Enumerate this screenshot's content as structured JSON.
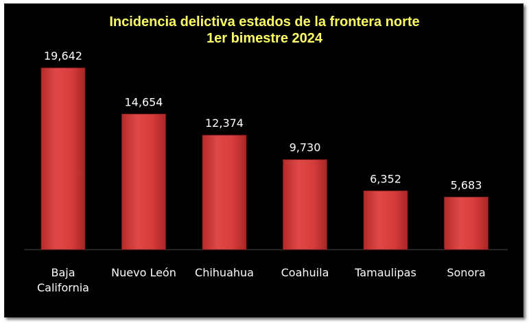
{
  "chart_data": {
    "type": "bar",
    "title": "Incidencia delictiva estados de la frontera norte",
    "subtitle": "1er bimestre 2024",
    "categories": [
      "Baja California",
      "Nuevo León",
      "Chihuahua",
      "Coahuila",
      "Tamaulipas",
      "Sonora"
    ],
    "values": [
      19642,
      14654,
      12374,
      9730,
      6352,
      5683
    ],
    "data_labels": [
      "19,642",
      "14,654",
      "12,374",
      "9,730",
      "6,352",
      "5,683"
    ],
    "xlabel": "",
    "ylabel": "",
    "ylim": [
      0,
      20000
    ],
    "grid": false,
    "legend": "none",
    "colors": {
      "background": "#000000",
      "title": "#ffff66",
      "bar": "#d63c3c",
      "bar_highlight": "#f07070",
      "text": "#ffffff"
    }
  }
}
